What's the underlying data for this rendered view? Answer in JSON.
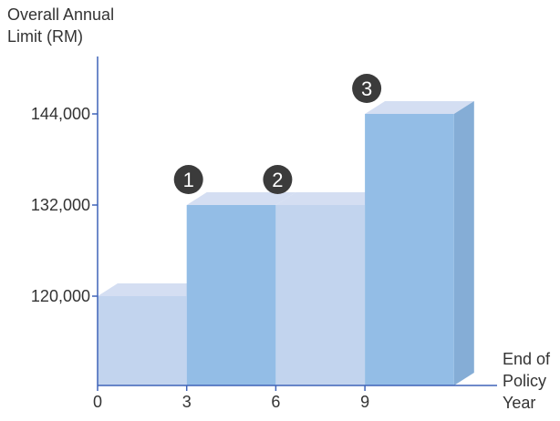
{
  "chart_data": {
    "type": "bar",
    "xlabel": "End of\nPolicy\nYear",
    "ylabel": "Overall Annual\nLimit (RM)",
    "x_ticks": [
      "0",
      "3",
      "6",
      "9"
    ],
    "y_ticks": [
      {
        "value": 120000,
        "label": "120,000"
      },
      {
        "value": 132000,
        "label": "132,000"
      },
      {
        "value": 144000,
        "label": "144,000"
      }
    ],
    "bars": [
      {
        "x_start": 0,
        "x_end": 3,
        "value": 120000,
        "marker": ""
      },
      {
        "x_start": 3,
        "x_end": 6,
        "value": 132000,
        "marker": "1"
      },
      {
        "x_start": 6,
        "x_end": 9,
        "value": 132000,
        "marker": "2"
      },
      {
        "x_start": 9,
        "x_end": 12,
        "value": 144000,
        "marker": "3"
      }
    ],
    "colors": {
      "bar_light": "#c2d4ee",
      "bar_dark": "#93bde6",
      "bar_top": "#d4def2",
      "bar_side": "#85add6",
      "axis": "#3f63b8",
      "marker_bg": "#3b3b3b",
      "marker_text": "#ffffff"
    }
  }
}
